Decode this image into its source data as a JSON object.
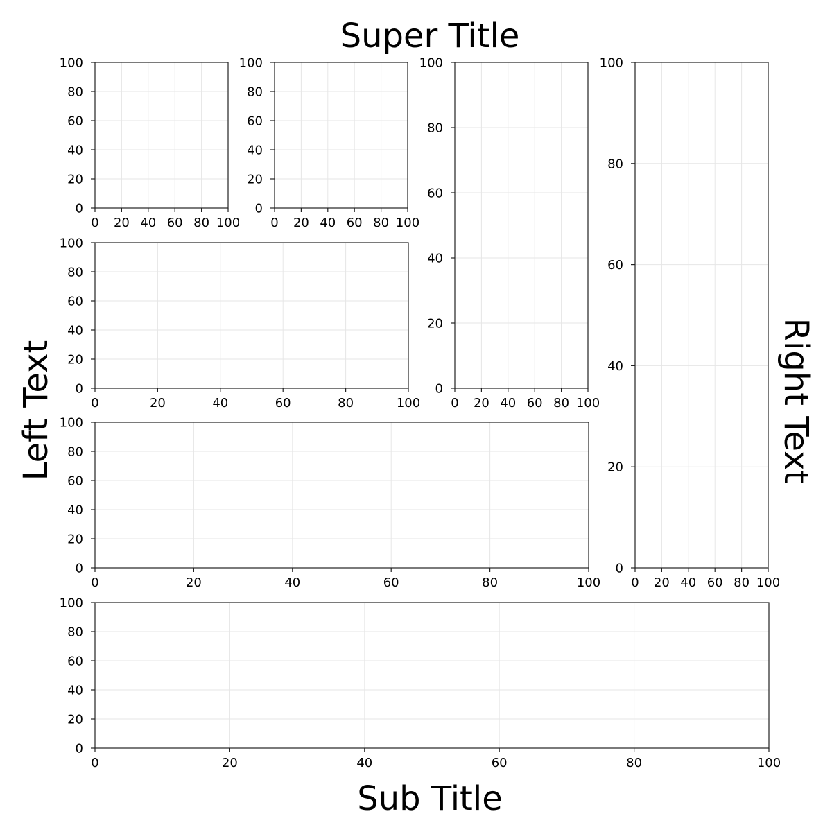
{
  "figure": {
    "super_title": "Super Title",
    "sub_title": "Sub Title",
    "left_text": "Left Text",
    "right_text": "Right Text"
  },
  "chart_data": [
    {
      "type": "scatter",
      "series": [],
      "xlim": [
        0,
        100
      ],
      "ylim": [
        0,
        100
      ],
      "x_ticks": [
        "0",
        "20",
        "40",
        "60",
        "80",
        "100"
      ],
      "y_ticks": [
        "0",
        "20",
        "40",
        "60",
        "80",
        "100"
      ],
      "grid": true
    },
    {
      "type": "scatter",
      "series": [],
      "xlim": [
        0,
        100
      ],
      "ylim": [
        0,
        100
      ],
      "x_ticks": [
        "0",
        "20",
        "40",
        "60",
        "80",
        "100"
      ],
      "y_ticks": [
        "0",
        "20",
        "40",
        "60",
        "80",
        "100"
      ],
      "grid": true
    },
    {
      "type": "scatter",
      "series": [],
      "xlim": [
        0,
        100
      ],
      "ylim": [
        0,
        100
      ],
      "x_ticks": [
        "0",
        "20",
        "40",
        "60",
        "80",
        "100"
      ],
      "y_ticks": [
        "0",
        "20",
        "40",
        "60",
        "80",
        "100"
      ],
      "grid": true
    },
    {
      "type": "scatter",
      "series": [],
      "xlim": [
        0,
        100
      ],
      "ylim": [
        0,
        100
      ],
      "x_ticks": [
        "0",
        "20",
        "40",
        "60",
        "80",
        "100"
      ],
      "y_ticks": [
        "0",
        "20",
        "40",
        "60",
        "80",
        "100"
      ],
      "grid": true
    },
    {
      "type": "scatter",
      "series": [],
      "xlim": [
        0,
        100
      ],
      "ylim": [
        0,
        100
      ],
      "x_ticks": [
        "0",
        "20",
        "40",
        "60",
        "80",
        "100"
      ],
      "y_ticks": [
        "0",
        "20",
        "40",
        "60",
        "80",
        "100"
      ],
      "grid": true
    },
    {
      "type": "scatter",
      "series": [],
      "xlim": [
        0,
        100
      ],
      "ylim": [
        0,
        100
      ],
      "x_ticks": [
        "0",
        "20",
        "40",
        "60",
        "80",
        "100"
      ],
      "y_ticks": [
        "0",
        "20",
        "40",
        "60",
        "80",
        "100"
      ],
      "grid": true
    },
    {
      "type": "scatter",
      "series": [],
      "xlim": [
        0,
        100
      ],
      "ylim": [
        0,
        100
      ],
      "x_ticks": [
        "0",
        "20",
        "40",
        "60",
        "80",
        "100"
      ],
      "y_ticks": [
        "0",
        "20",
        "40",
        "60",
        "80",
        "100"
      ],
      "grid": true
    }
  ]
}
